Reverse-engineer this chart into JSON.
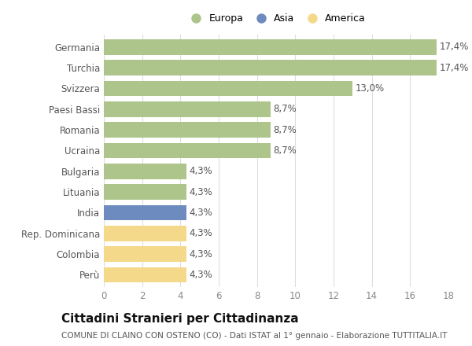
{
  "categories": [
    "Germania",
    "Turchia",
    "Svizzera",
    "Paesi Bassi",
    "Romania",
    "Ucraina",
    "Bulgaria",
    "Lituania",
    "India",
    "Rep. Dominicana",
    "Colombia",
    "Perù"
  ],
  "values": [
    17.4,
    17.4,
    13.0,
    8.7,
    8.7,
    8.7,
    4.3,
    4.3,
    4.3,
    4.3,
    4.3,
    4.3
  ],
  "labels": [
    "17,4%",
    "17,4%",
    "13,0%",
    "8,7%",
    "8,7%",
    "8,7%",
    "4,3%",
    "4,3%",
    "4,3%",
    "4,3%",
    "4,3%",
    "4,3%"
  ],
  "continents": [
    "Europa",
    "Europa",
    "Europa",
    "Europa",
    "Europa",
    "Europa",
    "Europa",
    "Europa",
    "Asia",
    "America",
    "America",
    "America"
  ],
  "colors": {
    "Europa": "#adc48a",
    "Asia": "#6e8bbf",
    "America": "#f5d98b"
  },
  "xlim": [
    0,
    18
  ],
  "xticks": [
    0,
    2,
    4,
    6,
    8,
    10,
    12,
    14,
    16,
    18
  ],
  "title": "Cittadini Stranieri per Cittadinanza",
  "subtitle": "COMUNE DI CLAINO CON OSTENO (CO) - Dati ISTAT al 1° gennaio - Elaborazione TUTTITALIA.IT",
  "legend_labels": [
    "Europa",
    "Asia",
    "America"
  ],
  "legend_colors": [
    "#adc48a",
    "#6e8bbf",
    "#f5d98b"
  ],
  "background_color": "#ffffff",
  "bar_height": 0.75,
  "label_fontsize": 8.5,
  "title_fontsize": 11,
  "subtitle_fontsize": 7.5,
  "tick_fontsize": 8.5,
  "grid_color": "#dddddd"
}
